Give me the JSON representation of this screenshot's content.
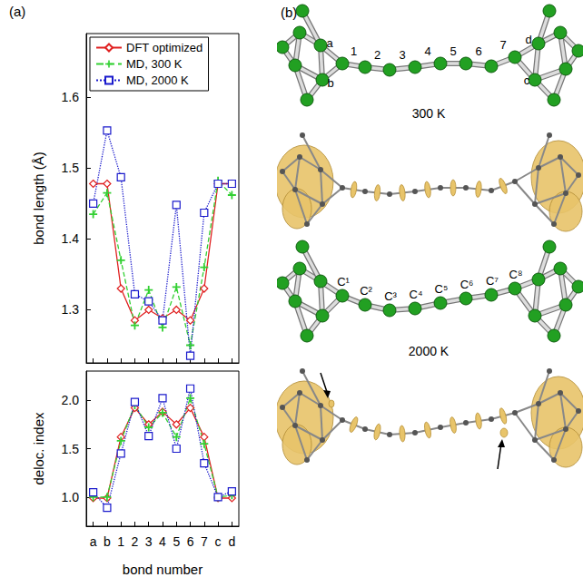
{
  "chart_data": [
    {
      "type": "line",
      "categories": [
        "a",
        "b",
        "1",
        "2",
        "3",
        "4",
        "5",
        "6",
        "7",
        "c",
        "d"
      ],
      "ylabel": "bond length (Å)",
      "ylim": [
        1.225,
        1.69
      ],
      "yticks": [
        1.3,
        1.4,
        1.5,
        1.6
      ],
      "tick_labels": "y",
      "legend": "upper left",
      "series": [
        {
          "name": "DFT optimized",
          "color": "#e02020",
          "marker": "diamond",
          "line_style": "solid",
          "values": [
            1.478,
            1.478,
            1.33,
            1.285,
            1.3,
            1.288,
            1.3,
            1.285,
            1.33,
            1.478,
            1.478
          ]
        },
        {
          "name": "MD, 300 K",
          "color": "#33d033",
          "marker": "plus",
          "line_style": "dashed",
          "values": [
            1.435,
            1.465,
            1.37,
            1.278,
            1.328,
            1.275,
            1.332,
            1.25,
            1.36,
            1.482,
            1.462
          ]
        },
        {
          "name": "MD, 2000 K",
          "color": "#1a1acc",
          "marker": "square",
          "line_style": "dotted",
          "values": [
            1.45,
            1.553,
            1.487,
            1.322,
            1.312,
            1.285,
            1.448,
            1.235,
            1.437,
            1.478,
            1.478
          ]
        }
      ]
    },
    {
      "type": "line",
      "categories": [
        "a",
        "b",
        "1",
        "2",
        "3",
        "4",
        "5",
        "6",
        "7",
        "c",
        "d"
      ],
      "xlabel": "bond number",
      "ylabel": "deloc. index",
      "ylim": [
        0.7,
        2.3
      ],
      "yticks": [
        {
          "value": 1,
          "label": "1.0"
        },
        1.5,
        {
          "value": 2,
          "label": "2.0"
        }
      ],
      "series": [
        {
          "name": "DFT optimized",
          "color": "#e02020",
          "marker": "diamond",
          "line_style": "solid",
          "values": [
            0.99,
            0.99,
            1.62,
            1.92,
            1.75,
            1.88,
            1.75,
            1.92,
            1.62,
            0.99,
            0.99
          ]
        },
        {
          "name": "MD, 300 K",
          "color": "#33d033",
          "marker": "plus",
          "line_style": "dashed",
          "values": [
            1.0,
            1.0,
            1.58,
            1.95,
            1.72,
            1.87,
            1.62,
            2.02,
            1.55,
            1.0,
            1.02
          ]
        },
        {
          "name": "MD, 2000 K",
          "color": "#1a1acc",
          "marker": "square",
          "line_style": "dotted",
          "values": [
            1.05,
            0.89,
            1.45,
            1.98,
            1.63,
            2.02,
            1.5,
            2.12,
            1.35,
            1.0,
            1.06
          ]
        }
      ]
    }
  ],
  "panel_labels": [
    "(a)",
    "(b)"
  ],
  "structures": [
    {
      "temperature": "300 K",
      "bond_labels": [
        "a",
        "b",
        "1",
        "2",
        "3",
        "4",
        "5",
        "6",
        "7",
        "c",
        "d"
      ]
    },
    {
      "temperature": "2000 K",
      "atom_labels": [
        "C¹",
        "C²",
        "C³",
        "C⁴",
        "C⁵",
        "C⁶",
        "C⁷",
        "C⁸"
      ]
    }
  ]
}
